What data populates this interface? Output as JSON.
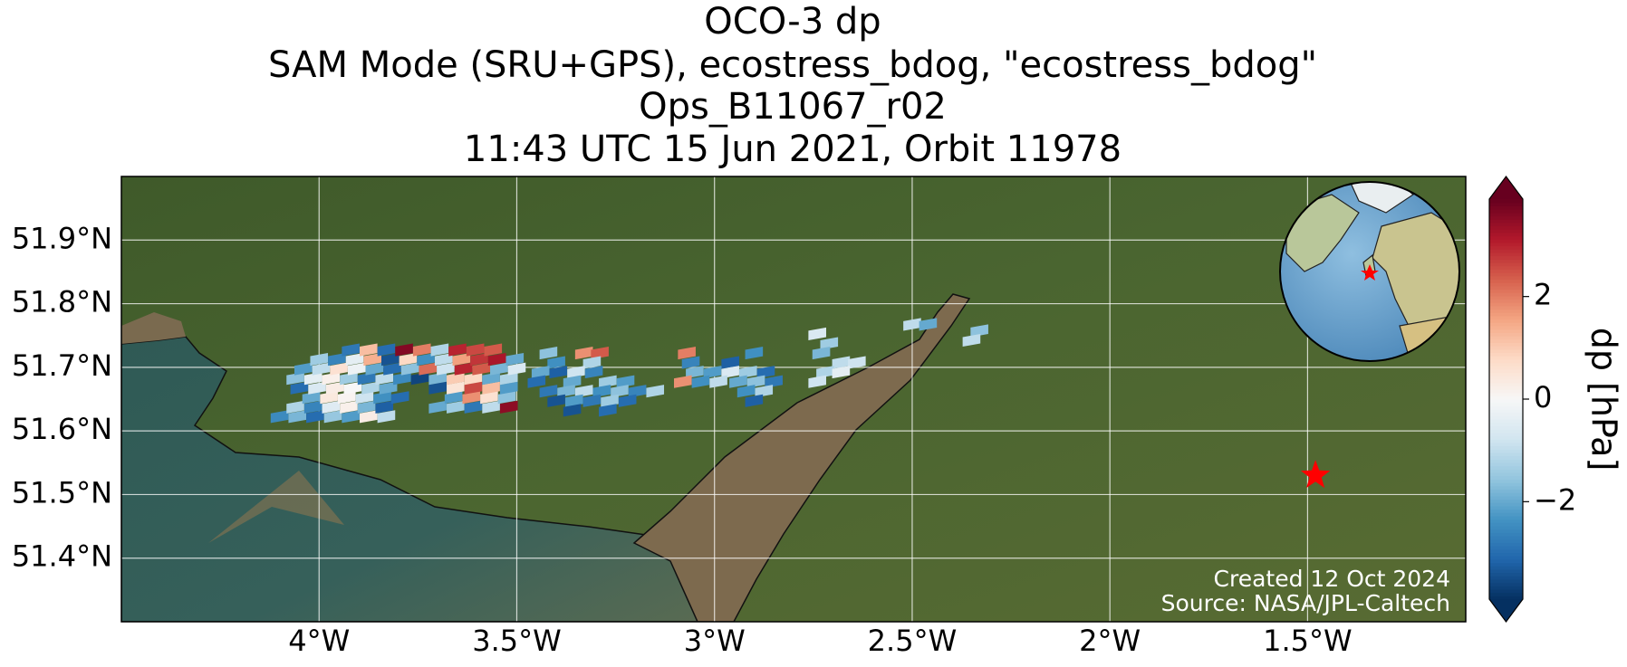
{
  "chart_data": {
    "type": "map",
    "title": [
      "OCO-3 dp",
      "SAM Mode (SRU+GPS), ecostress_bdog, \"ecostress_bdog\"",
      "Ops_B11067_r02",
      "11:43 UTC 15 Jun 2021, Orbit 11978"
    ],
    "xlim": [
      -4.5,
      -1.1
    ],
    "ylim": [
      51.3,
      52.0
    ],
    "xticks": [
      {
        "value": -4,
        "label": "4°W"
      },
      {
        "value": -3.5,
        "label": "3.5°W"
      },
      {
        "value": -3,
        "label": "3°W"
      },
      {
        "value": -2.5,
        "label": "2.5°W"
      },
      {
        "value": -2,
        "label": "2°W"
      },
      {
        "value": -1.5,
        "label": "1.5°W"
      }
    ],
    "yticks": [
      {
        "value": 51.4,
        "label": "51.4°N"
      },
      {
        "value": 51.5,
        "label": "51.5°N"
      },
      {
        "value": 51.6,
        "label": "51.6°N"
      },
      {
        "value": 51.7,
        "label": "51.7°N"
      },
      {
        "value": 51.8,
        "label": "51.8°N"
      },
      {
        "value": 51.9,
        "label": "51.9°N"
      }
    ],
    "grid": true,
    "colorbar": {
      "label": "dp [hPa]",
      "clim": [
        -3.9,
        3.9
      ],
      "ticks": [
        {
          "value": -2,
          "label": "−2"
        },
        0,
        2
      ],
      "colors": [
        "#053061",
        "#2166ac",
        "#4393c3",
        "#92c5de",
        "#d1e5f0",
        "#f7f7f7",
        "#fddbc7",
        "#f4a582",
        "#d6604d",
        "#b2182b",
        "#67001f"
      ]
    },
    "target": {
      "lon": -1.48,
      "lat": 51.53,
      "color": "#ff0000"
    },
    "annotations": [
      "Created 12 Oct 2024",
      "Source: NASA/JPL-Caltech"
    ],
    "soundings": {
      "lon": [
        -4.1,
        -4.055,
        -4.01,
        -3.965,
        -3.92,
        -3.875,
        -3.83,
        -4.06,
        -4.015,
        -3.97,
        -3.925,
        -3.88,
        -3.835,
        -3.7,
        -3.655,
        -3.61,
        -3.565,
        -3.52,
        -4.02,
        -3.975,
        -3.93,
        -3.885,
        -3.84,
        -3.795,
        -3.66,
        -3.615,
        -3.57,
        -3.525,
        -4.05,
        -4.005,
        -3.96,
        -3.915,
        -3.87,
        -3.825,
        -3.7,
        -3.655,
        -3.61,
        -3.565,
        -3.52,
        -4.06,
        -4.015,
        -3.97,
        -3.925,
        -3.88,
        -3.835,
        -3.79,
        -3.745,
        -3.7,
        -3.655,
        -3.61,
        -3.565,
        -3.52,
        -4.04,
        -3.995,
        -3.95,
        -3.905,
        -3.86,
        -3.815,
        -3.77,
        -3.725,
        -3.68,
        -3.635,
        -3.59,
        -3.545,
        -3.5,
        -4.0,
        -3.955,
        -3.91,
        -3.865,
        -3.82,
        -3.775,
        -3.73,
        -3.685,
        -3.64,
        -3.595,
        -3.55,
        -3.505,
        -3.92,
        -3.875,
        -3.83,
        -3.785,
        -3.74,
        -3.695,
        -3.65,
        -3.605,
        -3.56,
        -3.42,
        -3.33,
        -3.29,
        -3.4,
        -3.31,
        -3.44,
        -3.395,
        -3.35,
        -3.305,
        -3.45,
        -3.36,
        -3.27,
        -3.225,
        -3.42,
        -3.375,
        -3.33,
        -3.285,
        -3.24,
        -3.195,
        -3.15,
        -3.4,
        -3.355,
        -3.31,
        -3.265,
        -3.22,
        -3.36,
        -3.27,
        -3.07,
        -2.9,
        -3.06,
        -2.96,
        -3.05,
        -3.005,
        -2.96,
        -2.915,
        -2.87,
        -3.08,
        -3.035,
        -2.99,
        -2.94,
        -2.895,
        -2.85,
        -2.92,
        -2.875,
        -2.9,
        -2.74,
        -2.71,
        -2.73,
        -2.68,
        -2.64,
        -2.72,
        -2.68,
        -2.74,
        -2.5,
        -2.46,
        -2.33,
        -2.35
      ],
      "lat": [
        51.62,
        51.62,
        51.62,
        51.62,
        51.62,
        51.62,
        51.62,
        51.635,
        51.635,
        51.635,
        51.635,
        51.635,
        51.635,
        51.635,
        51.635,
        51.635,
        51.635,
        51.635,
        51.65,
        51.65,
        51.65,
        51.65,
        51.65,
        51.65,
        51.65,
        51.65,
        51.65,
        51.65,
        51.665,
        51.665,
        51.665,
        51.665,
        51.665,
        51.665,
        51.665,
        51.665,
        51.665,
        51.665,
        51.665,
        51.68,
        51.68,
        51.68,
        51.68,
        51.68,
        51.68,
        51.68,
        51.68,
        51.68,
        51.68,
        51.68,
        51.68,
        51.68,
        51.695,
        51.695,
        51.695,
        51.695,
        51.695,
        51.695,
        51.695,
        51.695,
        51.695,
        51.695,
        51.695,
        51.695,
        51.695,
        51.71,
        51.71,
        51.71,
        51.71,
        51.71,
        51.71,
        51.71,
        51.71,
        51.71,
        51.71,
        51.71,
        51.71,
        51.725,
        51.725,
        51.725,
        51.725,
        51.725,
        51.725,
        51.725,
        51.725,
        51.725,
        51.72,
        51.72,
        51.72,
        51.705,
        51.705,
        51.69,
        51.69,
        51.69,
        51.69,
        51.675,
        51.675,
        51.675,
        51.675,
        51.66,
        51.66,
        51.66,
        51.66,
        51.66,
        51.66,
        51.66,
        51.645,
        51.645,
        51.645,
        51.645,
        51.645,
        51.63,
        51.63,
        51.72,
        51.72,
        51.705,
        51.705,
        51.69,
        51.69,
        51.69,
        51.69,
        51.69,
        51.675,
        51.675,
        51.675,
        51.675,
        51.675,
        51.675,
        51.66,
        51.66,
        51.645,
        51.75,
        51.735,
        51.72,
        51.705,
        51.705,
        51.69,
        51.69,
        51.675,
        51.765,
        51.765,
        51.755,
        51.74
      ],
      "dp": [
        -2.5,
        -1.8,
        -3.0,
        -1.5,
        -2.2,
        0.3,
        -1.0,
        -1.2,
        -2.6,
        -0.5,
        0.2,
        -1.8,
        -3.2,
        -2.0,
        -1.4,
        -2.8,
        -1.0,
        3.5,
        -2.0,
        0.4,
        0.1,
        -0.8,
        -2.4,
        -3.0,
        -2.2,
        1.8,
        0.6,
        -1.6,
        -3.0,
        -0.6,
        0.3,
        0.0,
        -1.2,
        -2.0,
        -3.4,
        0.5,
        2.6,
        1.2,
        -2.2,
        -1.6,
        -0.4,
        0.2,
        -1.4,
        -2.8,
        -1.0,
        -2.5,
        -3.6,
        -1.8,
        1.0,
        0.8,
        -2.0,
        -1.2,
        -2.2,
        -1.0,
        0.6,
        -0.2,
        -2.0,
        -3.0,
        -1.6,
        2.2,
        -0.8,
        3.0,
        2.4,
        -1.8,
        -0.6,
        -1.4,
        -2.6,
        -0.4,
        1.4,
        -3.4,
        0.8,
        -2.4,
        -1.0,
        1.6,
        2.8,
        3.2,
        -2.0,
        -2.8,
        1.2,
        -3.0,
        3.6,
        2.0,
        -1.2,
        3.0,
        2.6,
        2.4,
        -1.6,
        1.8,
        2.4,
        -2.4,
        -1.2,
        -2.0,
        -3.2,
        -0.8,
        -2.6,
        -3.0,
        -2.0,
        -1.4,
        -2.2,
        -2.8,
        -1.8,
        -1.0,
        -2.4,
        -1.6,
        -2.6,
        -1.2,
        -3.4,
        -2.2,
        -2.8,
        -1.4,
        -3.0,
        -3.4,
        -3.0,
        2.0,
        -2.4,
        -2.6,
        -3.2,
        -1.8,
        -2.2,
        -0.6,
        -1.4,
        -3.0,
        1.8,
        -2.4,
        -1.0,
        -2.0,
        -1.6,
        -2.8,
        -2.4,
        -1.2,
        -3.2,
        -0.6,
        -1.4,
        -1.8,
        -1.0,
        -0.8,
        -1.2,
        -0.4,
        -0.8,
        -1.0,
        -2.0,
        -1.6,
        -1.0
      ]
    }
  }
}
